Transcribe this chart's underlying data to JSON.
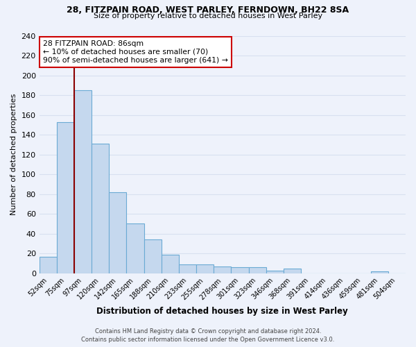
{
  "title_line1": "28, FITZPAIN ROAD, WEST PARLEY, FERNDOWN, BH22 8SA",
  "title_line2": "Size of property relative to detached houses in West Parley",
  "xlabel": "Distribution of detached houses by size in West Parley",
  "ylabel": "Number of detached properties",
  "categories": [
    "52sqm",
    "75sqm",
    "97sqm",
    "120sqm",
    "142sqm",
    "165sqm",
    "188sqm",
    "210sqm",
    "233sqm",
    "255sqm",
    "278sqm",
    "301sqm",
    "323sqm",
    "346sqm",
    "368sqm",
    "391sqm",
    "414sqm",
    "436sqm",
    "459sqm",
    "481sqm",
    "504sqm"
  ],
  "values": [
    17,
    153,
    185,
    131,
    82,
    50,
    34,
    19,
    9,
    9,
    7,
    6,
    6,
    3,
    5,
    0,
    0,
    0,
    0,
    2,
    0
  ],
  "bar_color": "#c5d8ee",
  "bar_edge_color": "#6aaad4",
  "background_color": "#eef2fb",
  "grid_color": "#d8e0f0",
  "property_line_color": "#8b0000",
  "annotation_text": "28 FITZPAIN ROAD: 86sqm\n← 10% of detached houses are smaller (70)\n90% of semi-detached houses are larger (641) →",
  "annotation_box_color": "#ffffff",
  "annotation_box_edge_color": "#cc0000",
  "ylim": [
    0,
    240
  ],
  "yticks": [
    0,
    20,
    40,
    60,
    80,
    100,
    120,
    140,
    160,
    180,
    200,
    220,
    240
  ],
  "footer_line1": "Contains HM Land Registry data © Crown copyright and database right 2024.",
  "footer_line2": "Contains public sector information licensed under the Open Government Licence v3.0."
}
